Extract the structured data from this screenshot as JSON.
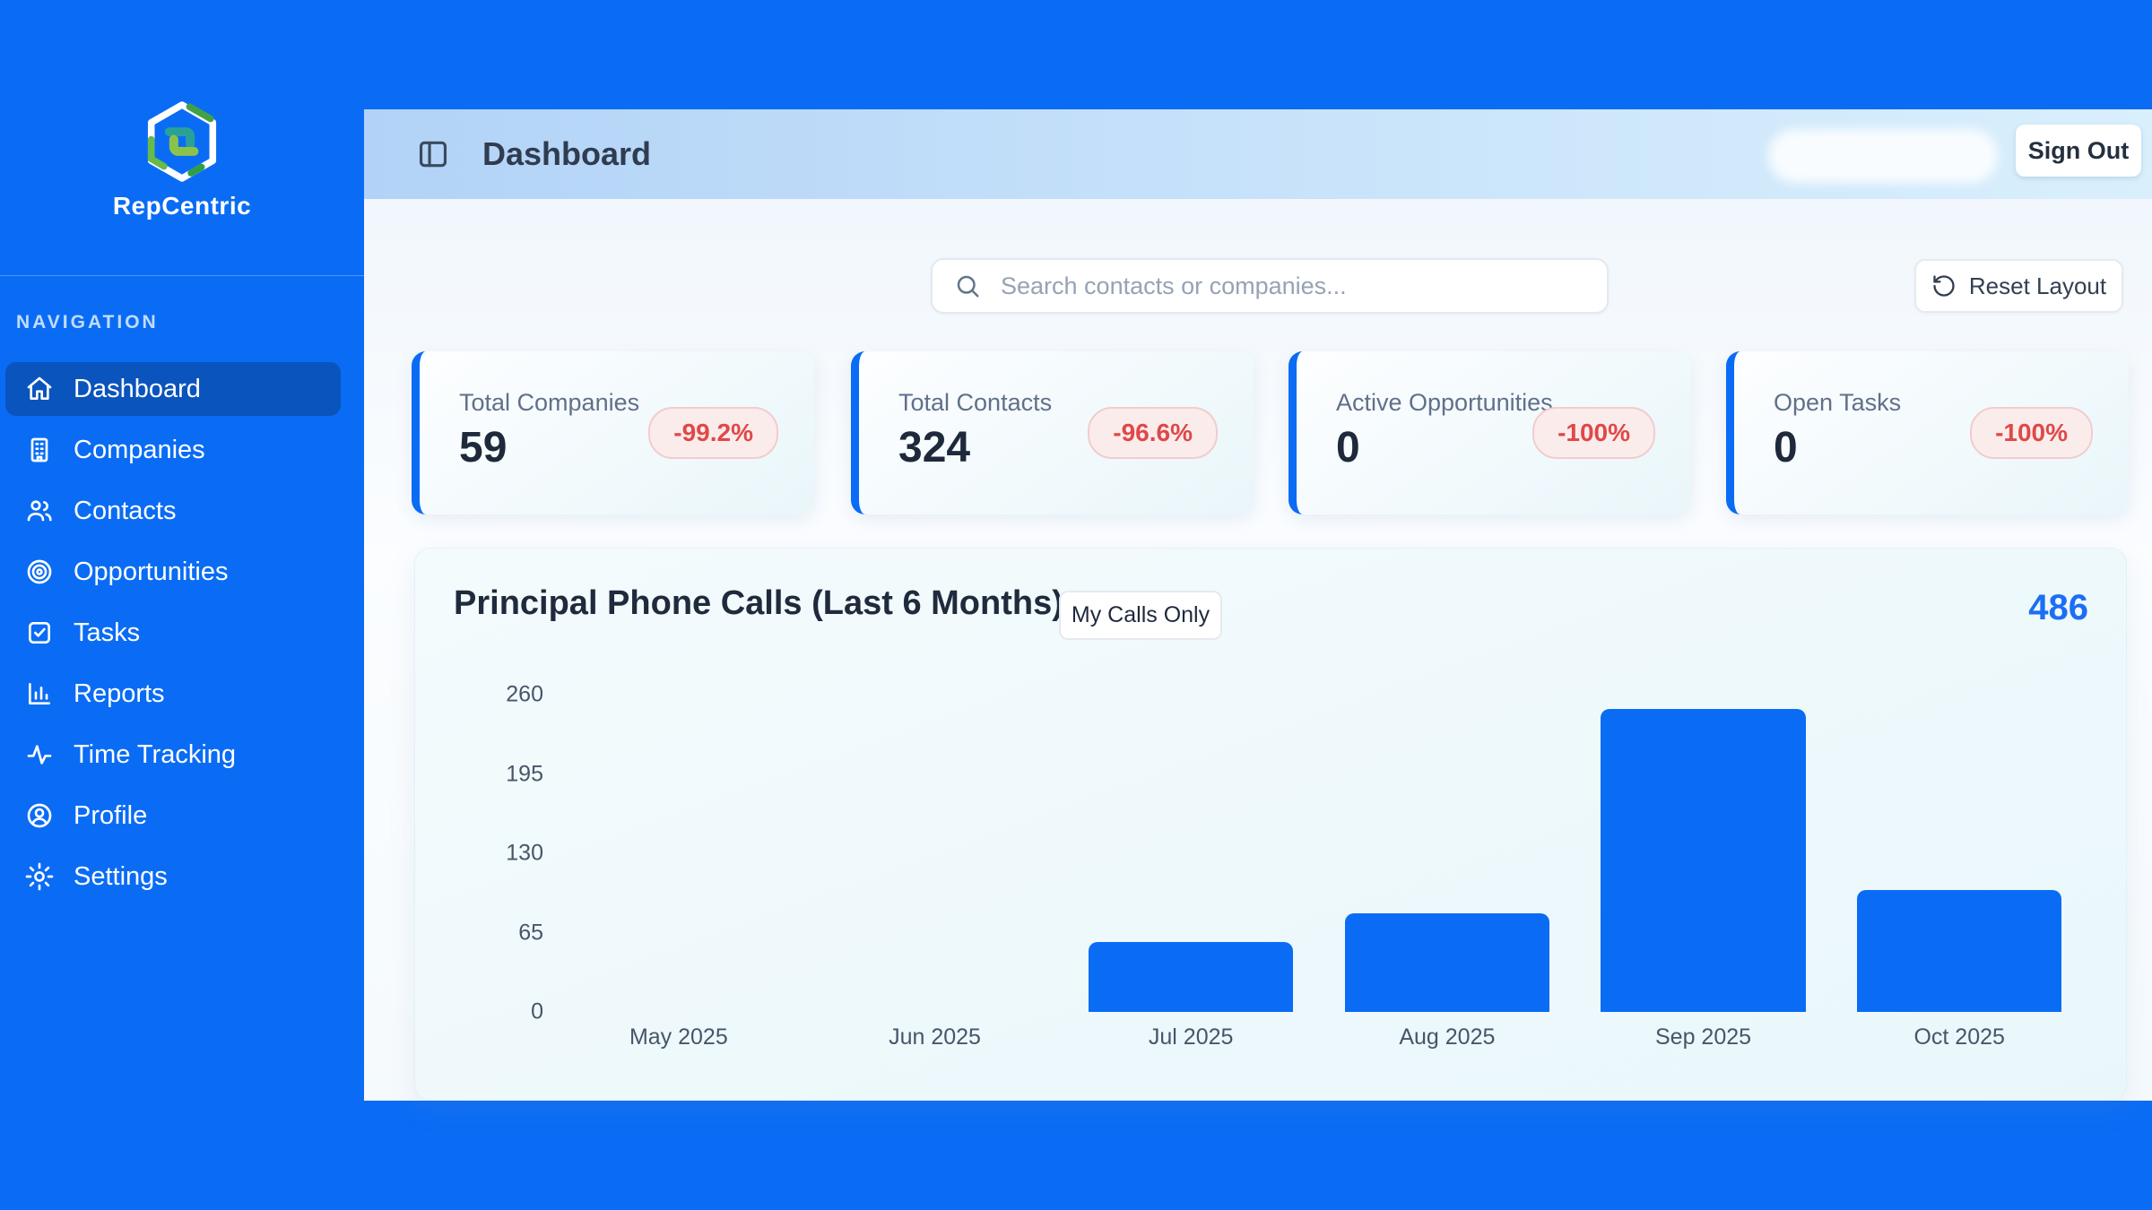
{
  "app": {
    "name": "RepCentric"
  },
  "sidebar": {
    "section_label": "NAVIGATION",
    "items": [
      {
        "label": "Dashboard",
        "icon": "home-icon",
        "active": true
      },
      {
        "label": "Companies",
        "icon": "building-icon",
        "active": false
      },
      {
        "label": "Contacts",
        "icon": "users-icon",
        "active": false
      },
      {
        "label": "Opportunities",
        "icon": "target-icon",
        "active": false
      },
      {
        "label": "Tasks",
        "icon": "check-square-icon",
        "active": false
      },
      {
        "label": "Reports",
        "icon": "bar-chart-icon",
        "active": false
      },
      {
        "label": "Time Tracking",
        "icon": "activity-icon",
        "active": false
      },
      {
        "label": "Profile",
        "icon": "user-circle-icon",
        "active": false
      },
      {
        "label": "Settings",
        "icon": "gear-icon",
        "active": false
      }
    ]
  },
  "header": {
    "title": "Dashboard",
    "sign_out_label": "Sign Out"
  },
  "toolbar": {
    "search_placeholder": "Search contacts or companies...",
    "reset_label": "Reset Layout"
  },
  "stats": [
    {
      "label": "Total Companies",
      "value": "59",
      "change": "-99.2%"
    },
    {
      "label": "Total Contacts",
      "value": "324",
      "change": "-96.6%"
    },
    {
      "label": "Active Opportunities",
      "value": "0",
      "change": "-100%"
    },
    {
      "label": "Open Tasks",
      "value": "0",
      "change": "-100%"
    }
  ],
  "chart_data": {
    "type": "bar",
    "title": "Principal Phone Calls (Last 6 Months)",
    "filter_button_label": "My Calls Only",
    "total": "486",
    "categories": [
      "May 2025",
      "Jun 2025",
      "Jul 2025",
      "Aug 2025",
      "Sep 2025",
      "Oct 2025"
    ],
    "values": [
      0,
      0,
      57,
      81,
      248,
      100
    ],
    "yticks": [
      260,
      195,
      130,
      65,
      0
    ],
    "ylim": [
      0,
      260
    ],
    "xlabel": "",
    "ylabel": "",
    "grid": false,
    "legend": false,
    "bar_color": "#0a6cf5"
  },
  "colors": {
    "page_blue": "#0a6cf5",
    "active_nav": "#0a54bd",
    "badge_red": "#e04848",
    "total_blue": "#1b6ef5",
    "bar": "#0a6cf5"
  }
}
